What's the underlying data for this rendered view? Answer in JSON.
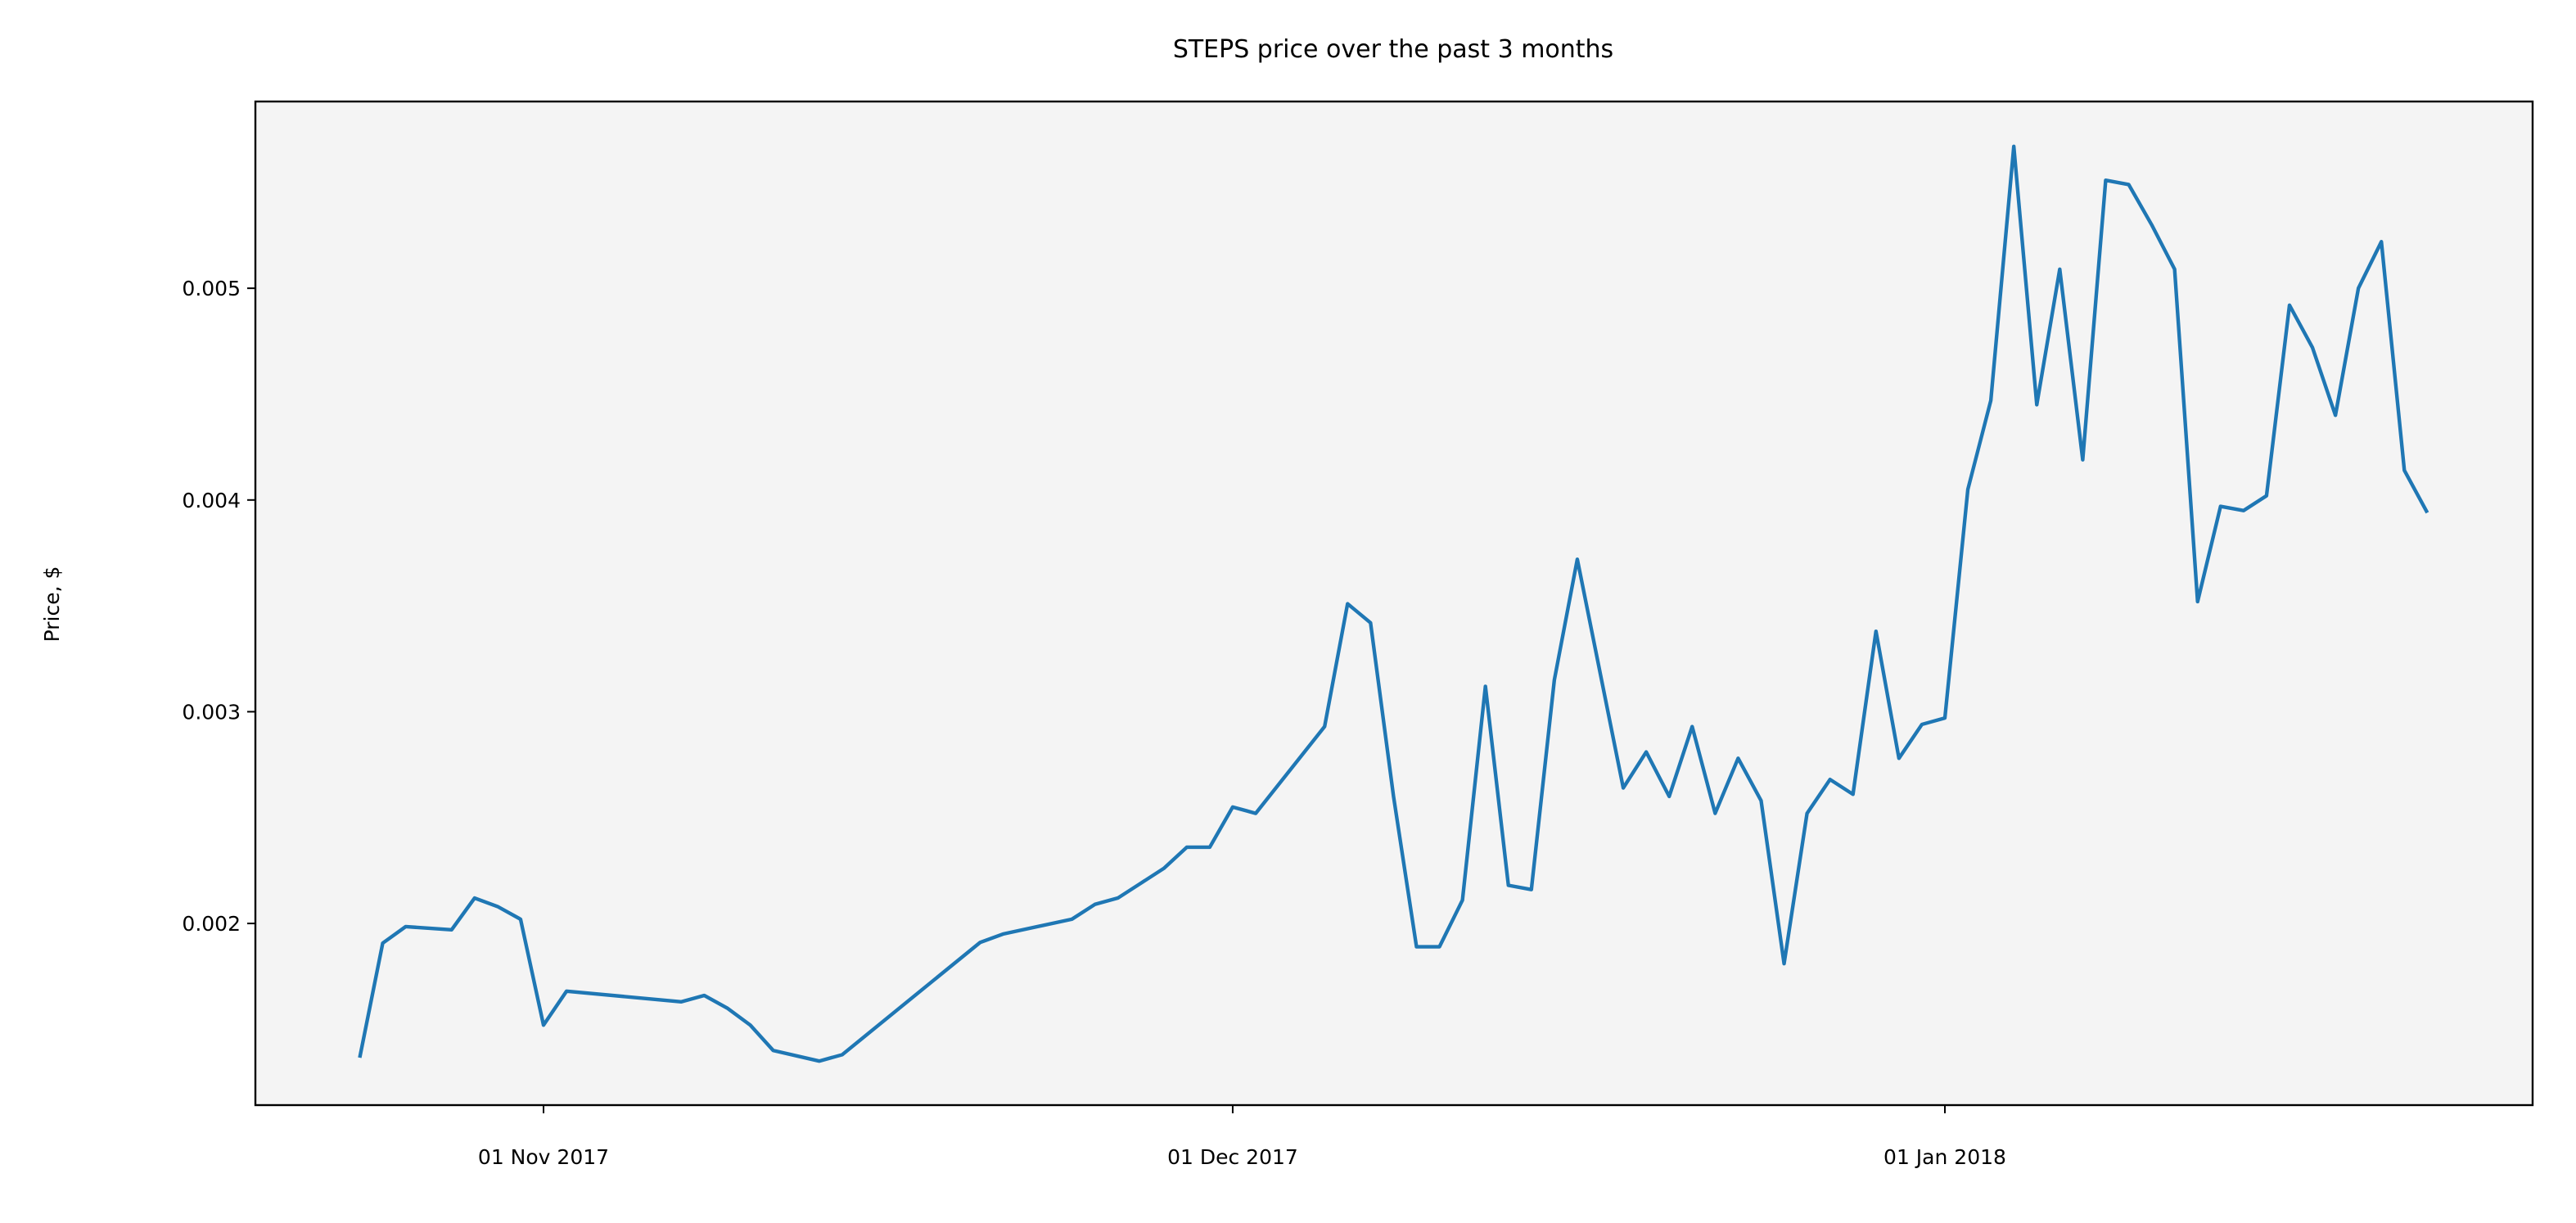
{
  "chart_data": {
    "type": "line",
    "title": "STEPS price over the past 3 months",
    "y_label": "Price, $",
    "x": [
      "2017-10-24",
      "2017-10-25",
      "2017-10-26",
      "2017-10-28",
      "2017-10-29",
      "2017-10-30",
      "2017-10-31",
      "2017-11-01",
      "2017-11-02",
      "2017-11-07",
      "2017-11-08",
      "2017-11-09",
      "2017-11-10",
      "2017-11-11",
      "2017-11-13",
      "2017-11-14",
      "2017-11-20",
      "2017-11-21",
      "2017-11-24",
      "2017-11-25",
      "2017-11-26",
      "2017-11-27",
      "2017-11-28",
      "2017-11-29",
      "2017-11-30",
      "2017-12-01",
      "2017-12-02",
      "2017-12-05",
      "2017-12-06",
      "2017-12-07",
      "2017-12-08",
      "2017-12-09",
      "2017-12-10",
      "2017-12-11",
      "2017-12-12",
      "2017-12-13",
      "2017-12-14",
      "2017-12-15",
      "2017-12-16",
      "2017-12-18",
      "2017-12-19",
      "2017-12-20",
      "2017-12-21",
      "2017-12-22",
      "2017-12-23",
      "2017-12-24",
      "2017-12-25",
      "2017-12-26",
      "2017-12-27",
      "2017-12-28",
      "2017-12-29",
      "2017-12-30",
      "2017-12-31",
      "2018-01-01",
      "2018-01-02",
      "2018-01-03",
      "2018-01-04",
      "2018-01-05",
      "2018-01-06",
      "2018-01-07",
      "2018-01-08",
      "2018-01-09",
      "2018-01-10",
      "2018-01-11",
      "2018-01-12",
      "2018-01-13",
      "2018-01-14",
      "2018-01-15",
      "2018-01-16",
      "2018-01-17",
      "2018-01-18",
      "2018-01-19",
      "2018-01-20",
      "2018-01-21",
      "2018-01-22"
    ],
    "series": [
      {
        "name": "STEPS",
        "color": "#1f77b4",
        "values": [
          0.001366,
          0.001907,
          0.001985,
          0.00197,
          0.00212,
          0.00208,
          0.00202,
          0.00152,
          0.00168,
          0.00163,
          0.00166,
          0.0016,
          0.00152,
          0.0014,
          0.00135,
          0.00138,
          0.00191,
          0.00195,
          0.00202,
          0.00209,
          0.00212,
          0.00219,
          0.00226,
          0.00236,
          0.00236,
          0.00255,
          0.00252,
          0.00293,
          0.00351,
          0.00342,
          0.0026,
          0.00189,
          0.00189,
          0.00211,
          0.00312,
          0.00218,
          0.00216,
          0.00315,
          0.00372,
          0.00264,
          0.00281,
          0.0026,
          0.00293,
          0.00252,
          0.00278,
          0.00258,
          0.00181,
          0.00252,
          0.00268,
          0.00261,
          0.00338,
          0.00278,
          0.00294,
          0.00297,
          0.00405,
          0.00447,
          0.00567,
          0.00445,
          0.00509,
          0.00419,
          0.00551,
          0.00549,
          0.0053,
          0.00509,
          0.00352,
          0.00397,
          0.00395,
          0.00402,
          0.00492,
          0.00472,
          0.0044,
          0.005,
          0.00522,
          0.00414,
          0.00394
        ]
      }
    ],
    "xlim": [
      "2017-10-19T11:00Z",
      "2018-01-26T14:00Z"
    ],
    "xticks": [
      {
        "value": "2017-11-01",
        "label": "01 Nov 2017"
      },
      {
        "value": "2017-12-01",
        "label": "01 Dec 2017"
      },
      {
        "value": "2018-01-01",
        "label": "01 Jan 2018"
      }
    ],
    "ylim": [
      0.001142,
      0.005882
    ],
    "yticks": [
      0.002,
      0.003,
      0.004,
      0.005
    ],
    "background": "#f4f4f4"
  }
}
